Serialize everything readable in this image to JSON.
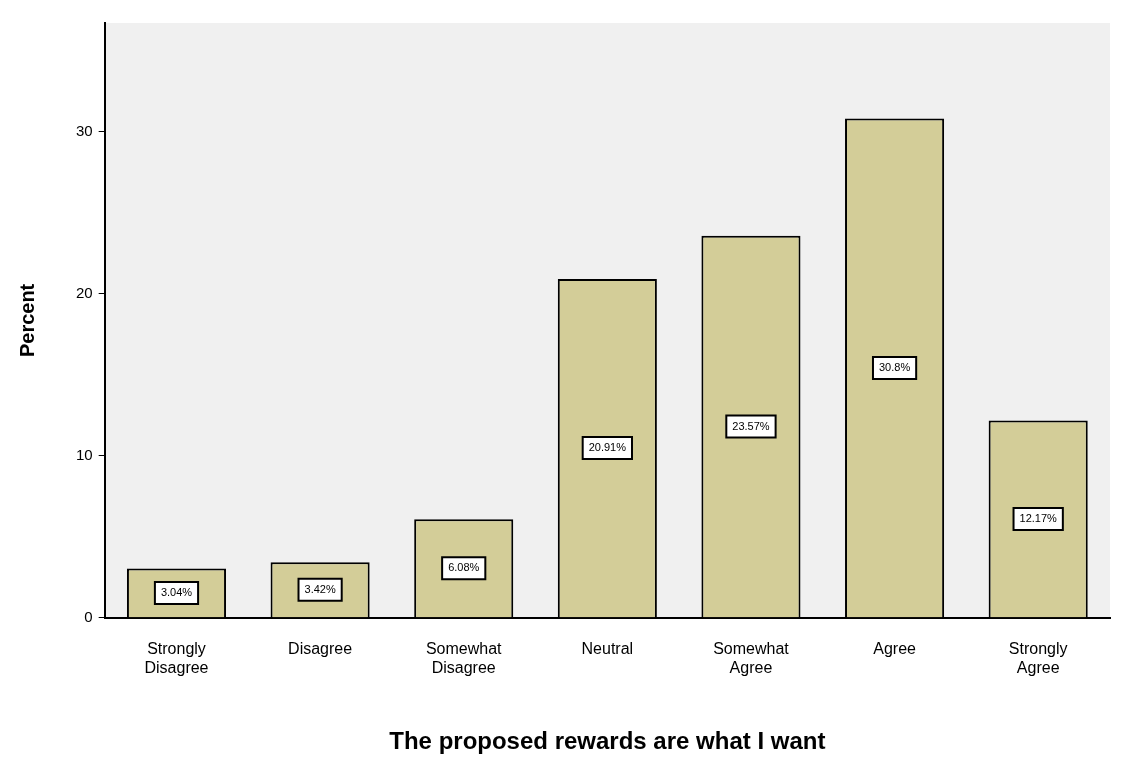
{
  "chart_data": {
    "type": "bar",
    "xlabel": "The proposed rewards are what I want",
    "ylabel": "Percent",
    "categories": [
      "Strongly Disagree",
      "Disagree",
      "Somewhat Disagree",
      "Neutral",
      "Somewhat Agree",
      "Agree",
      "Strongly Agree"
    ],
    "values": [
      3.04,
      3.42,
      6.08,
      20.91,
      23.57,
      30.8,
      12.17
    ],
    "value_labels": [
      "3.04%",
      "3.42%",
      "6.08%",
      "20.91%",
      "23.57%",
      "30.8%",
      "12.17%"
    ],
    "color": "#d3cd98",
    "ylim": [
      0,
      36.7
    ],
    "yticks": [
      0,
      10,
      20,
      30
    ],
    "grid": false,
    "legend": false
  }
}
